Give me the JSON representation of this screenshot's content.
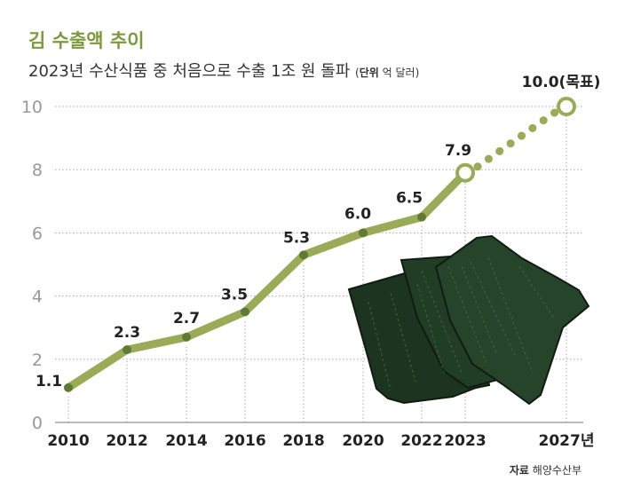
{
  "title": "김 수출액 추이",
  "subtitle": "2023년 수산식품 중 처음으로 수출 1조 원 돌파",
  "unit_label": "단위",
  "unit_value": "억 달러",
  "source_label": "자료",
  "source_value": "해양수산부",
  "colors": {
    "line": "#9aab58",
    "marker": "#5f7a32",
    "title": "#7c9a3c",
    "grid": "#a8a8a8",
    "tick": "#999999"
  },
  "chart_data": {
    "type": "line",
    "title": "김 수출액 추이",
    "subtitle": "2023년 수산식품 중 처음으로 수출 1조 원 돌파",
    "unit": "억 달러",
    "categories": [
      "2010",
      "2012",
      "2014",
      "2016",
      "2018",
      "2020",
      "2022",
      "2023",
      "2027년"
    ],
    "series": [
      {
        "values": [
          1.1,
          2.3,
          2.7,
          3.5,
          5.3,
          6.0,
          6.5,
          7.9,
          10.0
        ],
        "value_labels": [
          "1.1",
          "2.3",
          "2.7",
          "3.5",
          "5.3",
          "6.0",
          "6.5",
          "7.9",
          "10.0(목표)"
        ]
      }
    ],
    "projected_from": "2023",
    "yticks": [
      "0",
      "2",
      "4",
      "6",
      "8",
      "10"
    ],
    "ylim": [
      0,
      10
    ],
    "grid": true
  }
}
